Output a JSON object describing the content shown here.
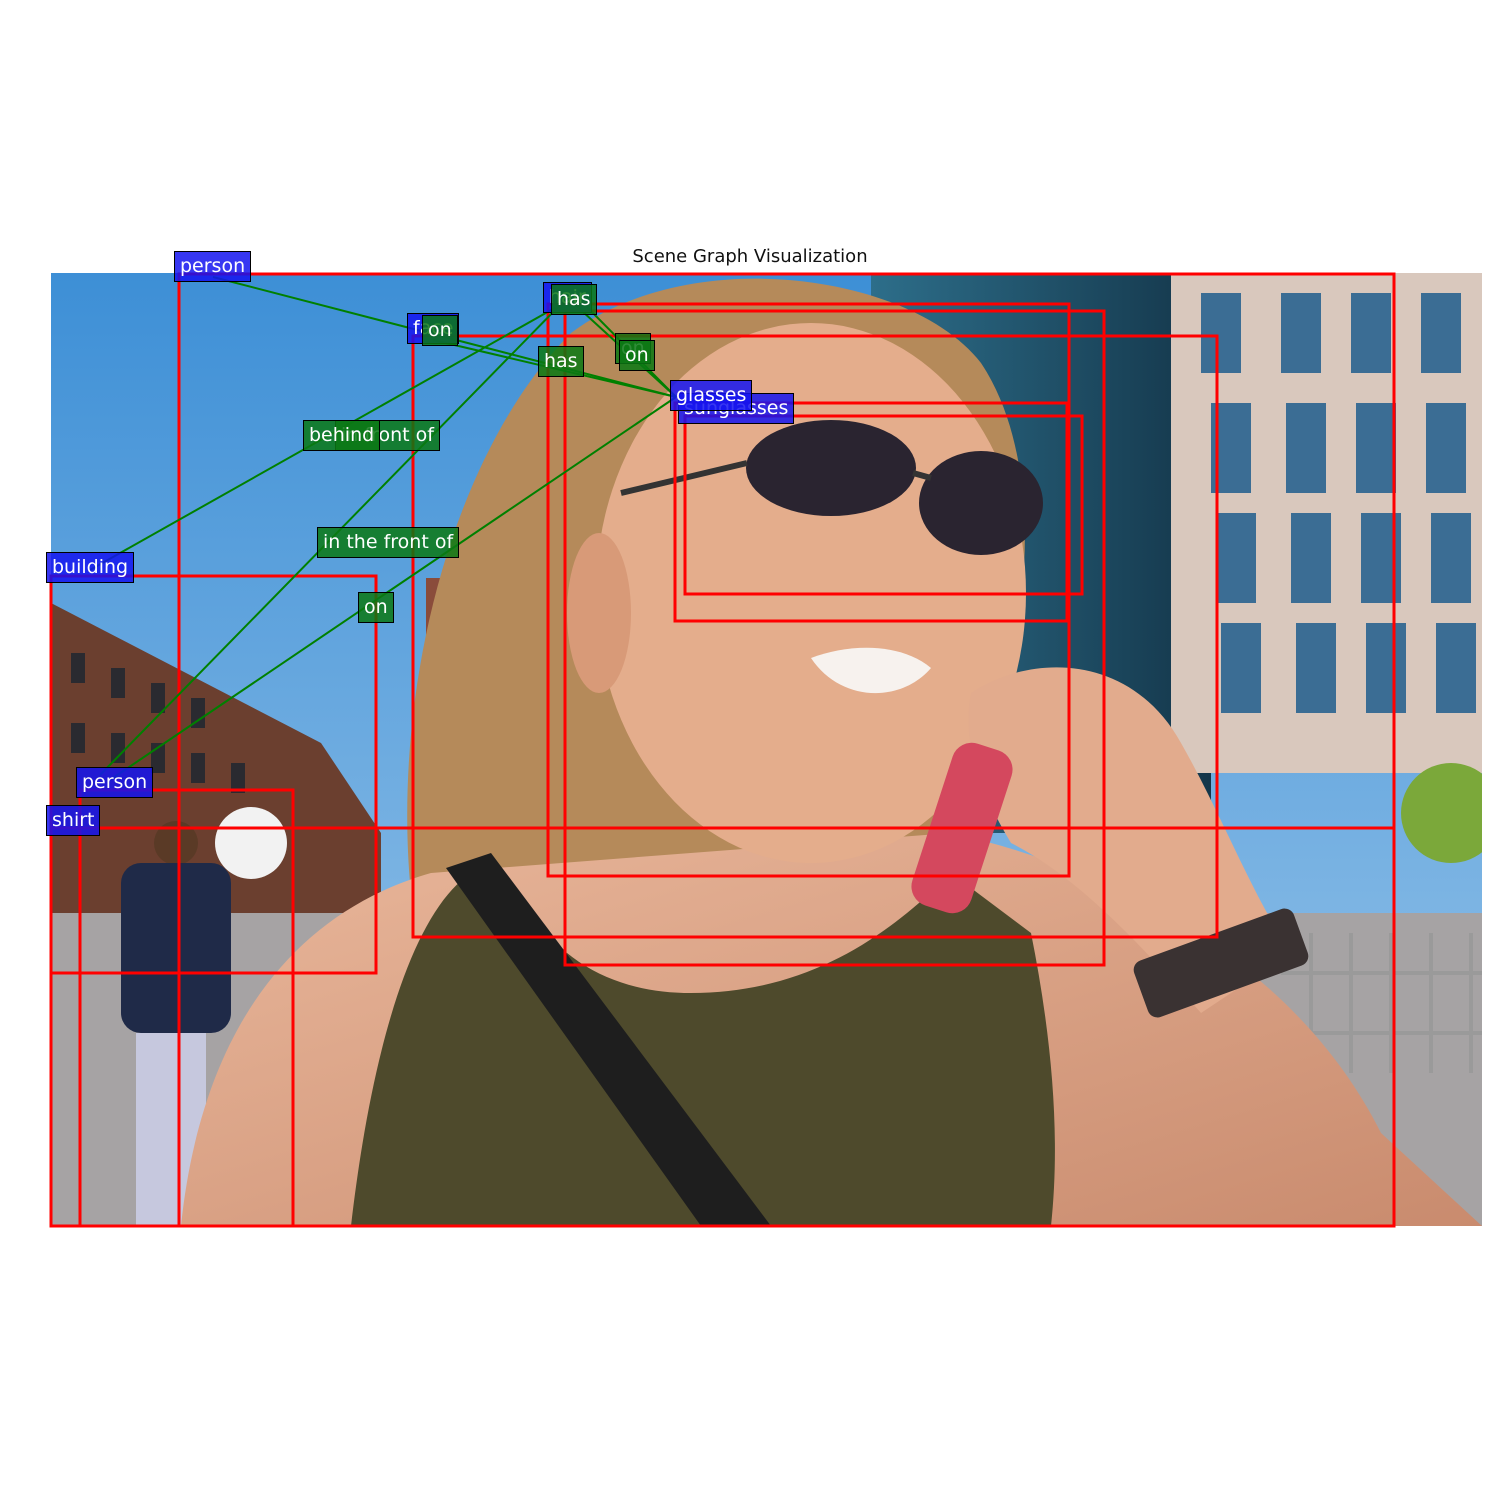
{
  "title": "Scene Graph Visualization",
  "colors": {
    "box": "#ff0000",
    "edge": "#008000",
    "object_label": "#1414f0",
    "relation_label": "#0a7814",
    "sky": "#5a9fd8",
    "skin": "#e0ac90",
    "hair": "#b48a5e",
    "shirt": "#5a5230",
    "phone": "#d4485e"
  },
  "objects": [
    {
      "id": "person_top",
      "label": "person"
    },
    {
      "id": "face",
      "label": "face"
    },
    {
      "id": "hair",
      "label": "hair"
    },
    {
      "id": "glasses",
      "label": "glasses"
    },
    {
      "id": "sunglasses",
      "label": "sunglasses"
    },
    {
      "id": "building",
      "label": "building"
    },
    {
      "id": "person_left",
      "label": "person"
    },
    {
      "id": "shirt",
      "label": "shirt"
    }
  ],
  "relations": [
    {
      "subject": "person_top",
      "predicate": "on",
      "object": "glasses"
    },
    {
      "subject": "face",
      "predicate": "has",
      "object": "glasses"
    },
    {
      "subject": "hair",
      "predicate": "has",
      "object": "sunglasses"
    },
    {
      "subject": "hair",
      "predicate": "on",
      "object": "glasses"
    },
    {
      "subject": "hair",
      "predicate": "on",
      "object": "glasses"
    },
    {
      "subject": "building",
      "predicate": "behind",
      "object": "hair"
    },
    {
      "subject": "person_left",
      "predicate": "in front of",
      "object": "hair"
    },
    {
      "subject": "person_left",
      "predicate": "in the front of",
      "object": "hair"
    },
    {
      "subject": "person_left",
      "predicate": "on",
      "object": "glasses"
    }
  ]
}
